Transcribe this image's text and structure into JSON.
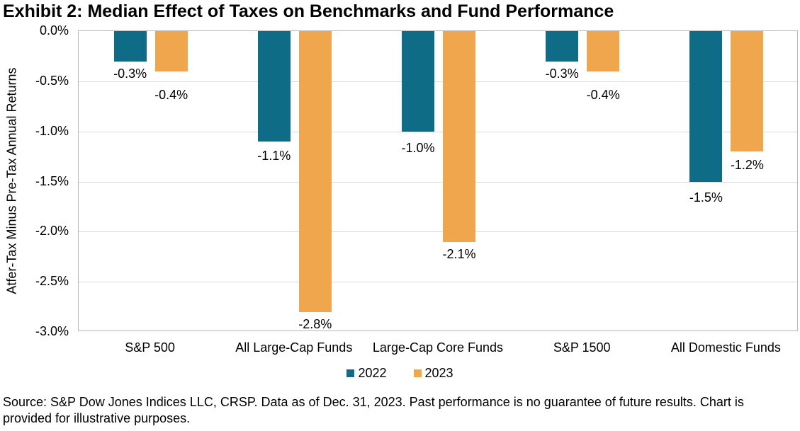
{
  "title": "Exhibit 2: Median Effect of Taxes on Benchmarks and Fund Performance",
  "chart_data": {
    "type": "bar",
    "categories": [
      "S&P 500",
      "All Large-Cap Funds",
      "Large-Cap Core Funds",
      "S&P 1500",
      "All Domestic Funds"
    ],
    "series": [
      {
        "name": "2022",
        "color": "#0E6C87",
        "values": [
          -0.3,
          -1.1,
          -1.0,
          -0.3,
          -1.5
        ],
        "label_dy": [
          7,
          10,
          13,
          7,
          12
        ]
      },
      {
        "name": "2023",
        "color": "#F0A64D",
        "values": [
          -0.4,
          -2.8,
          -2.1,
          -0.4,
          -1.2
        ],
        "label_dy": [
          23,
          7,
          7,
          23,
          9
        ]
      }
    ],
    "data_labels": [
      [
        "-0.3%",
        "-1.1%",
        "-1.0%",
        "-0.3%",
        "-1.5%"
      ],
      [
        "-0.4%",
        "-2.8%",
        "-2.1%",
        "-0.4%",
        "-1.2%"
      ]
    ],
    "xlabel": "",
    "ylabel": "Atfer-Tax Minus Pre-Tax Annual Returns",
    "ylim": [
      -3.0,
      0.0
    ],
    "yticks": [
      "0.0%",
      "-0.5%",
      "-1.0%",
      "-1.5%",
      "-2.0%",
      "-2.5%",
      "-3.0%"
    ],
    "grid": "horizontal",
    "legend_position": "bottom",
    "gridline_color": "#d9d9d9",
    "axis_border_color": "#b7b7b7"
  },
  "source": {
    "line1": "Source: S&P Dow Jones Indices LLC, CRSP. Data as of Dec. 31, 2023. Past performance is no guarantee of future results. Chart is",
    "line2": "provided for illustrative purposes."
  }
}
